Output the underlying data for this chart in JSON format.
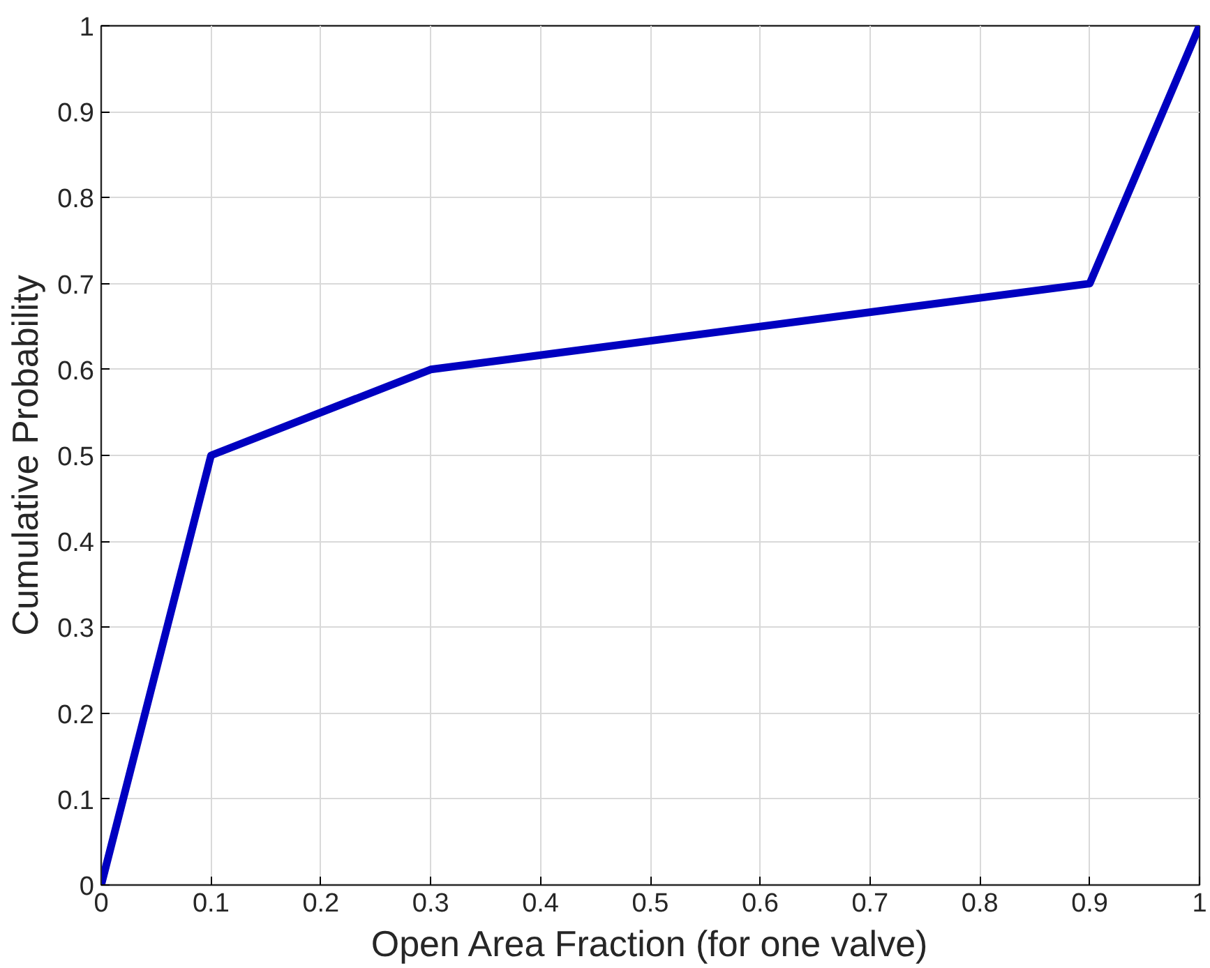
{
  "chart_data": {
    "type": "line",
    "xlabel": "Open Area Fraction (for one valve)",
    "ylabel": "Cumulative Probability",
    "x": [
      0,
      0.1,
      0.3,
      0.9,
      1
    ],
    "series": [
      {
        "color": "#0000c0",
        "values": [
          0,
          0.5,
          0.6,
          0.7,
          1
        ]
      }
    ],
    "xlim": [
      0,
      1
    ],
    "ylim": [
      0,
      1
    ],
    "xticks": [
      0,
      0.1,
      0.2,
      0.3,
      0.4,
      0.5,
      0.6,
      0.7,
      0.8,
      0.9,
      1
    ],
    "yticks": [
      0,
      0.1,
      0.2,
      0.3,
      0.4,
      0.5,
      0.6,
      0.7,
      0.8,
      0.9,
      1
    ],
    "grid": true,
    "line_style": "solid",
    "marker": "none"
  }
}
